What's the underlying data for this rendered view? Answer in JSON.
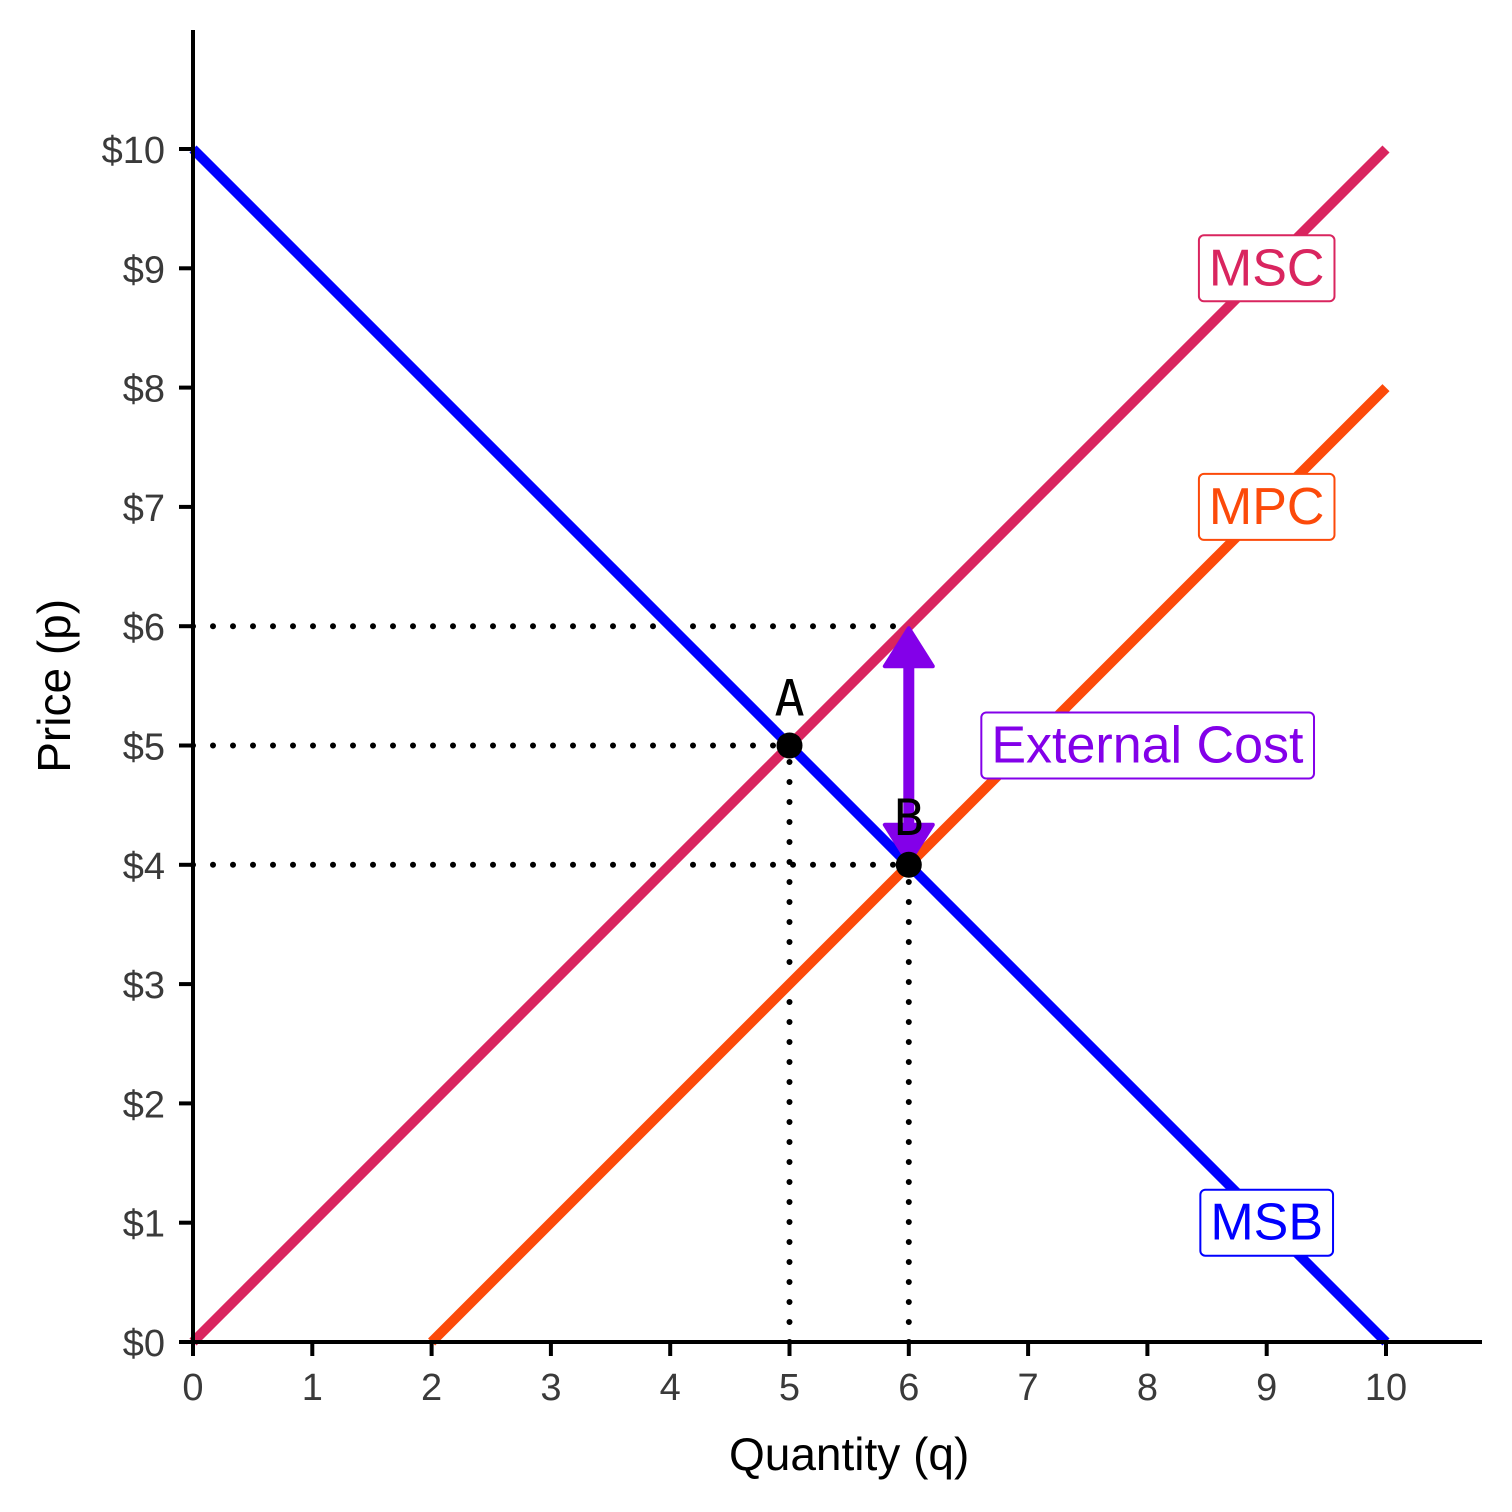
{
  "chart_data": {
    "type": "line",
    "xlabel": "Quantity (q)",
    "ylabel": "Price (p)",
    "xlim": [
      0,
      11
    ],
    "ylim": [
      0,
      11
    ],
    "x_ticks": [
      0,
      1,
      2,
      3,
      4,
      5,
      6,
      7,
      8,
      9,
      10
    ],
    "x_tick_labels": [
      "0",
      "1",
      "2",
      "3",
      "4",
      "5",
      "6",
      "7",
      "8",
      "9",
      "10"
    ],
    "y_ticks": [
      0,
      1,
      2,
      3,
      4,
      5,
      6,
      7,
      8,
      9,
      10
    ],
    "y_tick_labels": [
      "$0",
      "$1",
      "$2",
      "$3",
      "$4",
      "$5",
      "$6",
      "$7",
      "$8",
      "$9",
      "$10"
    ],
    "grid": false,
    "series": [
      {
        "name": "MSB",
        "color": "#0000ff",
        "x": [
          0,
          10
        ],
        "y": [
          10,
          0
        ],
        "label": "MSB",
        "label_at": [
          9,
          1
        ]
      },
      {
        "name": "MSC",
        "color": "#d9255f",
        "x": [
          0,
          10
        ],
        "y": [
          0,
          10
        ],
        "label": "MSC",
        "label_at": [
          9,
          9
        ]
      },
      {
        "name": "MPC",
        "color": "#fc4a0a",
        "x": [
          2,
          10
        ],
        "y": [
          0,
          8
        ],
        "label": "MPC",
        "label_at": [
          9,
          7
        ]
      }
    ],
    "points": [
      {
        "label": "A",
        "x": 5,
        "y": 5
      },
      {
        "label": "B",
        "x": 6,
        "y": 4
      }
    ],
    "guides": [
      {
        "from": [
          0,
          6
        ],
        "to": [
          6,
          6
        ]
      },
      {
        "from": [
          0,
          5
        ],
        "to": [
          5,
          5
        ]
      },
      {
        "from": [
          0,
          4
        ],
        "to": [
          6,
          4
        ]
      },
      {
        "from": [
          5,
          0
        ],
        "to": [
          5,
          5
        ]
      },
      {
        "from": [
          6,
          0
        ],
        "to": [
          6,
          4
        ]
      }
    ],
    "annotations": [
      {
        "type": "double-arrow",
        "x": 6,
        "y_from": 4,
        "y_to": 6,
        "color": "#8300e9"
      },
      {
        "type": "label",
        "text": "External Cost",
        "x": 8,
        "y": 5,
        "color": "#8300e9"
      }
    ]
  }
}
